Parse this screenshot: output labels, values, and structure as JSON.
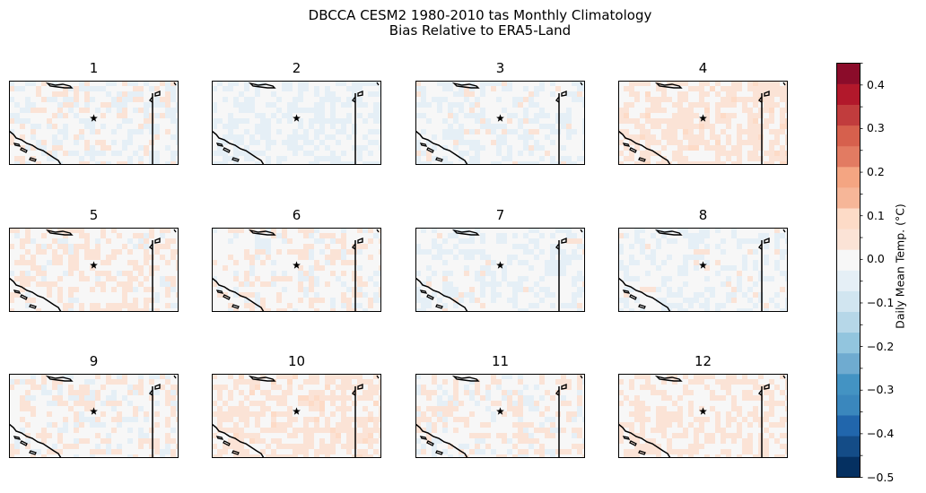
{
  "chart_data": {
    "type": "heatmap",
    "title": "DBCCA CESM2 1980-2010 tas Monthly Climatology",
    "subtitle": "Bias Relative to ERA5-Land",
    "panels": [
      {
        "label": "1",
        "mean_bias": 0.02
      },
      {
        "label": "2",
        "mean_bias": 0.0
      },
      {
        "label": "3",
        "mean_bias": 0.01
      },
      {
        "label": "4",
        "mean_bias": 0.06
      },
      {
        "label": "5",
        "mean_bias": 0.04
      },
      {
        "label": "6",
        "mean_bias": 0.03
      },
      {
        "label": "7",
        "mean_bias": 0.01
      },
      {
        "label": "8",
        "mean_bias": 0.01
      },
      {
        "label": "9",
        "mean_bias": 0.03
      },
      {
        "label": "10",
        "mean_bias": 0.06
      },
      {
        "label": "11",
        "mean_bias": 0.03
      },
      {
        "label": "12",
        "mean_bias": 0.05
      }
    ],
    "colorbar": {
      "label": "Daily Mean Temp. (°C)",
      "range": [
        -0.5,
        0.45
      ],
      "step": 0.05,
      "ticks": [
        -0.5,
        -0.4,
        -0.3,
        -0.2,
        -0.1,
        0.0,
        0.1,
        0.2,
        0.3,
        0.4
      ],
      "tick_labels": [
        "−0.5",
        "−0.4",
        "−0.3",
        "−0.2",
        "−0.1",
        "0.0",
        "0.1",
        "0.2",
        "0.3",
        "0.4"
      ],
      "colormap": [
        "#053061",
        "#144c87",
        "#2166ac",
        "#3a87bd",
        "#4393c3",
        "#6fabd0",
        "#92c5de",
        "#b6d7e8",
        "#d1e5f0",
        "#e5eff6",
        "#f7f7f7",
        "#fbe3d6",
        "#fddbc7",
        "#f6b698",
        "#f4a582",
        "#e27b62",
        "#d6604d",
        "#c13c3d",
        "#b2182b",
        "#8b0c2a"
      ]
    },
    "marker": "star"
  }
}
